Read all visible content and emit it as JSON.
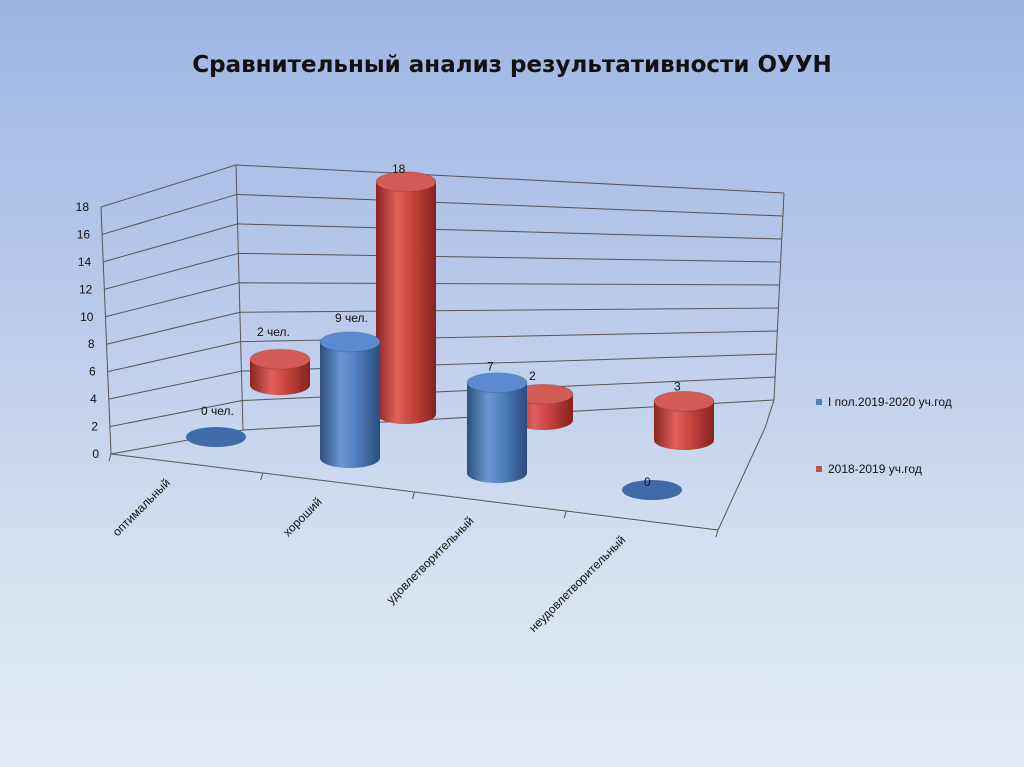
{
  "title": "Сравнительный анализ результативности ОУУН",
  "chart_data": {
    "type": "bar",
    "variant": "3d-cylinder",
    "title": "Сравнительный анализ результативности ОУУН",
    "categories": [
      "оптимальный",
      "хороший",
      "удовлетворительный",
      "неудовлетворительный"
    ],
    "series": [
      {
        "name": "I пол.2019-2020 уч.год",
        "values": [
          0,
          9,
          7,
          0
        ],
        "labels": [
          "0 чел.",
          "9 чел.",
          "7",
          "0"
        ],
        "color": "#4f81bd"
      },
      {
        "name": "2018-2019 уч.год",
        "values": [
          2,
          18,
          2,
          3
        ],
        "labels": [
          "2 чел.",
          "18",
          "2",
          "3"
        ],
        "color": "#c0504d"
      }
    ],
    "yticks": [
      0,
      2,
      4,
      6,
      8,
      10,
      12,
      14,
      16,
      18
    ],
    "ylim": [
      0,
      18
    ],
    "grid": true,
    "legend": "right"
  }
}
